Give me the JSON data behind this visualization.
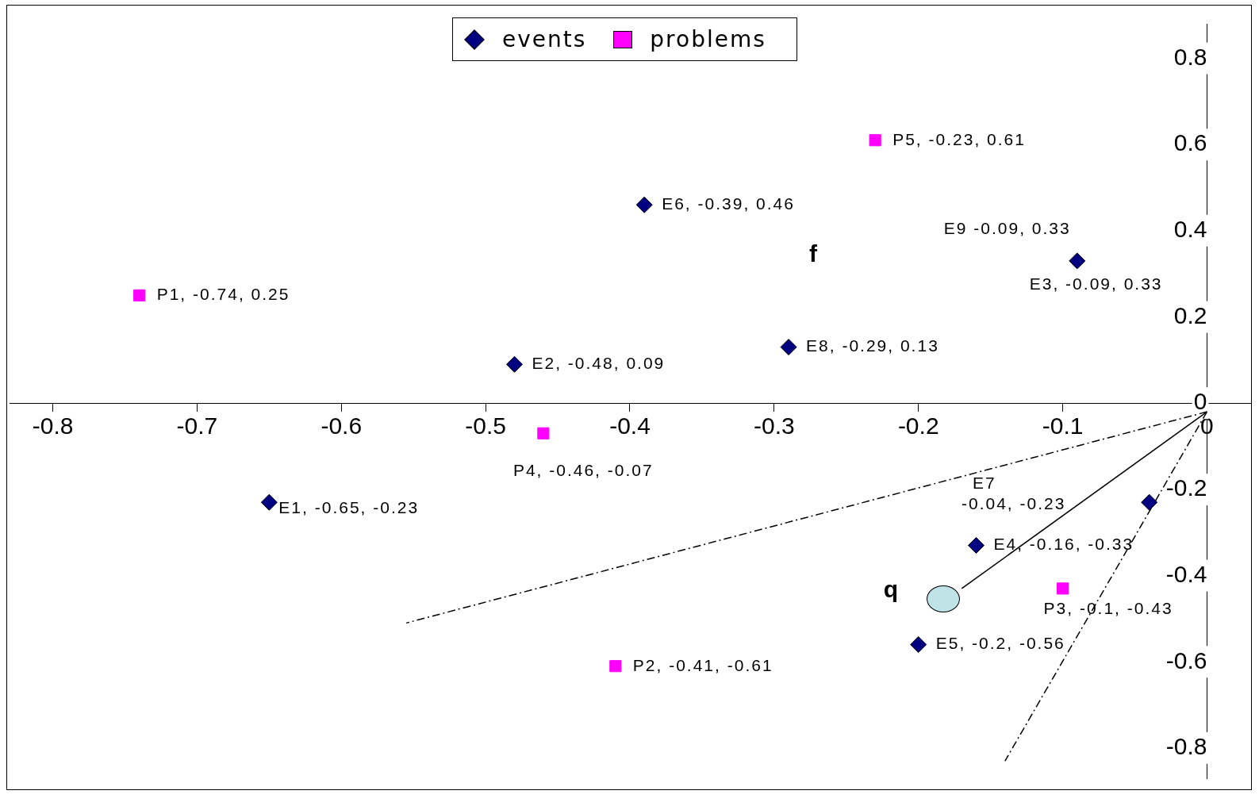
{
  "chart_data": {
    "type": "scatter",
    "xlim": [
      -0.83,
      0.03
    ],
    "ylim": [
      -0.87,
      0.88
    ],
    "xticks": [
      -0.8,
      -0.7,
      -0.6,
      -0.5,
      -0.4,
      -0.3,
      -0.2,
      -0.1,
      0
    ],
    "yticks": [
      -0.8,
      -0.6,
      -0.4,
      -0.2,
      0,
      0.2,
      0.4,
      0.6,
      0.8
    ],
    "grid": false,
    "legend": "top",
    "series": [
      {
        "name": "events",
        "color": "#000080",
        "marker": "diamond",
        "x": [
          -0.65,
          -0.48,
          -0.09,
          -0.16,
          -0.2,
          -0.39,
          -0.04,
          -0.29
        ],
        "values": [
          -0.23,
          0.09,
          0.33,
          -0.33,
          -0.56,
          0.46,
          -0.23,
          0.13
        ]
      },
      {
        "name": "problems",
        "color": "#ff00ff",
        "marker": "square",
        "x": [
          -0.74,
          -0.41,
          -0.1,
          -0.46,
          -0.23
        ],
        "values": [
          0.25,
          -0.61,
          -0.43,
          -0.07,
          0.61
        ]
      },
      {
        "type": "line",
        "color": "#000000",
        "line_style": "solid",
        "marker": "none",
        "x": [
          0,
          -0.17
        ],
        "values": [
          -0.02,
          -0.43
        ]
      },
      {
        "type": "line",
        "color": "#000000",
        "line_style": "dashed",
        "marker": "none",
        "x": [
          0,
          -0.555
        ],
        "values": [
          -0.02,
          -0.51
        ]
      },
      {
        "type": "line",
        "color": "#000000",
        "line_style": "dashed",
        "marker": "none",
        "x": [
          0,
          -0.14
        ],
        "values": [
          -0.02,
          -0.83
        ]
      }
    ],
    "annotations": [
      {
        "text": "E1, -0.65, -0.23",
        "x": -0.65,
        "y": -0.23
      },
      {
        "text": "E2, -0.48, 0.09",
        "x": -0.48,
        "y": 0.09
      },
      {
        "text": "E3, -0.09, 0.33",
        "x": -0.09,
        "y": 0.33
      },
      {
        "text": "E4, -0.16, -0.33",
        "x": -0.16,
        "y": -0.33
      },
      {
        "text": "E5, -0.2, -0.56",
        "x": -0.2,
        "y": -0.56
      },
      {
        "text": "E6, -0.39, 0.46",
        "x": -0.39,
        "y": 0.46
      },
      "E7\n-0.04, -0.23",
      {
        "text": "E8, -0.29, 0.13",
        "x": -0.29,
        "y": 0.13
      },
      {
        "text": "E9 -0.09, 0.33",
        "x": -0.09,
        "y": 0.33
      },
      {
        "text": "P1, -0.74, 0.25",
        "x": -0.74,
        "y": 0.25
      },
      {
        "text": "P2, -0.41, -0.61",
        "x": -0.41,
        "y": -0.61
      },
      {
        "text": "P3, -0.1, -0.43",
        "x": -0.1,
        "y": -0.43
      },
      {
        "text": "P4, -0.46, -0.07",
        "x": -0.46,
        "y": -0.07
      },
      {
        "text": "P5, -0.23, 0.61",
        "x": -0.23,
        "y": 0.61
      },
      "f",
      "q"
    ]
  }
}
